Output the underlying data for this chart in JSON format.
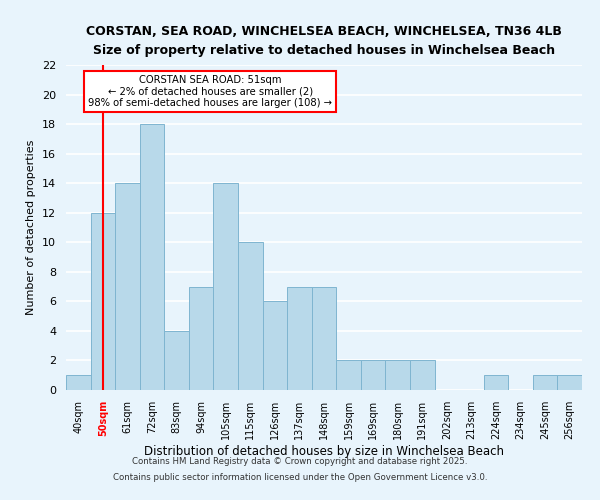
{
  "title1": "CORSTAN, SEA ROAD, WINCHELSEA BEACH, WINCHELSEA, TN36 4LB",
  "title2": "Size of property relative to detached houses in Winchelsea Beach",
  "xlabel": "Distribution of detached houses by size in Winchelsea Beach",
  "ylabel": "Number of detached properties",
  "footer1": "Contains HM Land Registry data © Crown copyright and database right 2025.",
  "footer2": "Contains public sector information licensed under the Open Government Licence v3.0.",
  "bin_labels": [
    "40sqm",
    "50sqm",
    "61sqm",
    "72sqm",
    "83sqm",
    "94sqm",
    "105sqm",
    "115sqm",
    "126sqm",
    "137sqm",
    "148sqm",
    "159sqm",
    "169sqm",
    "180sqm",
    "191sqm",
    "202sqm",
    "213sqm",
    "224sqm",
    "234sqm",
    "245sqm",
    "256sqm"
  ],
  "bar_values": [
    1,
    12,
    14,
    18,
    4,
    7,
    14,
    10,
    6,
    7,
    7,
    2,
    2,
    2,
    2,
    0,
    0,
    1,
    0,
    1,
    1
  ],
  "bar_color": "#b8d9ea",
  "bar_edge_color": "#7fb5d0",
  "vline_x_index": 1,
  "vline_color": "red",
  "annotation_title": "CORSTAN SEA ROAD: 51sqm",
  "annotation_line1": "← 2% of detached houses are smaller (2)",
  "annotation_line2": "98% of semi-detached houses are larger (108) →",
  "annotation_box_color": "white",
  "annotation_box_edge": "red",
  "ylim": [
    0,
    22
  ],
  "yticks": [
    0,
    2,
    4,
    6,
    8,
    10,
    12,
    14,
    16,
    18,
    20,
    22
  ],
  "bg_color": "#e8f4fc",
  "grid_color": "white"
}
